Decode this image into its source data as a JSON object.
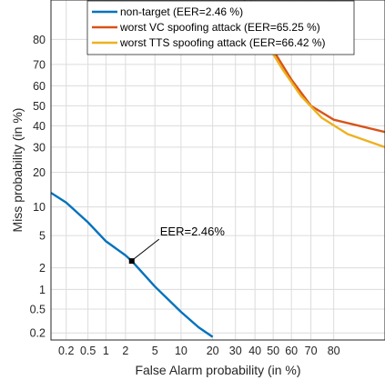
{
  "chart_data": {
    "type": "line",
    "scale": "normal-deviate (DET)",
    "grid": true,
    "xlabel": "False Alarm probability (in %)",
    "ylabel": "Miss probability (in %)",
    "xlim": [
      0.1,
      94
    ],
    "ylim": [
      0.15,
      91
    ],
    "x_ticks": [
      {
        "value": 0.2,
        "label": "0.2"
      },
      {
        "value": 0.5,
        "label": "0.5"
      },
      {
        "value": 1,
        "label": "1"
      },
      {
        "value": 2,
        "label": "2"
      },
      {
        "value": 5,
        "label": "5"
      },
      {
        "value": 10,
        "label": "10"
      },
      {
        "value": 20,
        "label": "20"
      },
      {
        "value": 30,
        "label": "30"
      },
      {
        "value": 40,
        "label": "40"
      },
      {
        "value": 50,
        "label": "50"
      },
      {
        "value": 60,
        "label": "60"
      },
      {
        "value": 70,
        "label": "70"
      },
      {
        "value": 80,
        "label": "80"
      }
    ],
    "y_ticks": [
      {
        "value": 0.2,
        "label": "0.2"
      },
      {
        "value": 0.5,
        "label": "0.5"
      },
      {
        "value": 1,
        "label": "1"
      },
      {
        "value": 2,
        "label": "2"
      },
      {
        "value": 5,
        "label": "5"
      },
      {
        "value": 10,
        "label": "10"
      },
      {
        "value": 20,
        "label": "20"
      },
      {
        "value": 30,
        "label": "30"
      },
      {
        "value": 40,
        "label": "40"
      },
      {
        "value": 50,
        "label": "50"
      },
      {
        "value": 60,
        "label": "60"
      },
      {
        "value": 70,
        "label": "70"
      },
      {
        "value": 80,
        "label": "80"
      }
    ],
    "legend_position": "top-right",
    "series": [
      {
        "name": "non-target (EER=2.46 %)",
        "color": "#0072bd",
        "x": [
          0.1,
          0.2,
          0.5,
          1,
          2,
          2.46,
          5,
          10,
          15,
          20
        ],
        "y": [
          13.5,
          11,
          7,
          4.3,
          2.9,
          2.46,
          1.1,
          0.45,
          0.25,
          0.17
        ]
      },
      {
        "name": "worst VC spoofing attack (EER=65.25 %)",
        "color": "#d95319",
        "x": [
          30,
          40,
          50,
          60,
          70,
          80,
          94
        ],
        "y": [
          94,
          86,
          76,
          63,
          50,
          43,
          37
        ]
      },
      {
        "name": "worst TTS spoofing attack (EER=66.42 %)",
        "color": "#edb120",
        "x": [
          35,
          45,
          55,
          65,
          75,
          85,
          94
        ],
        "y": [
          94,
          80,
          68,
          55,
          44,
          36,
          30
        ]
      }
    ],
    "annotations": [
      {
        "text": "EER=2.46%",
        "x": 2.46,
        "y": 2.46
      }
    ]
  }
}
